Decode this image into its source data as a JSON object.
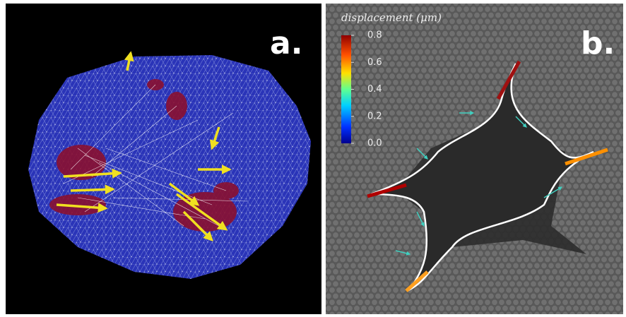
{
  "panels": [
    {
      "label": "a."
    },
    {
      "label": "b.",
      "colorbar": {
        "title": "displacement (μm)",
        "lim": [
          0,
          0.8
        ],
        "ticks": [
          0.8,
          0.6,
          0.4,
          0.2,
          {
            "value": 0,
            "label": "0.0"
          }
        ]
      }
    }
  ]
}
